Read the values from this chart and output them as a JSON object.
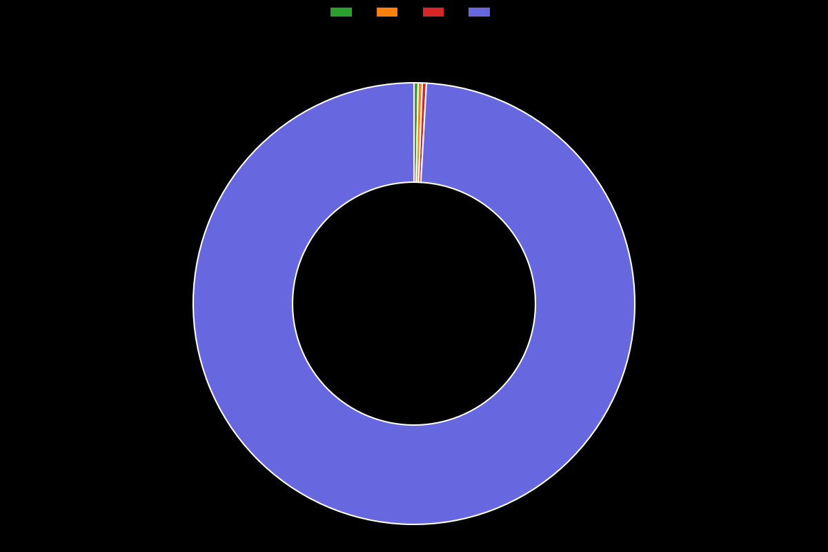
{
  "values": [
    0.3,
    0.3,
    0.3,
    99.1
  ],
  "colors": [
    "#2ca02c",
    "#ff7f0e",
    "#d62728",
    "#6767e0"
  ],
  "legend_labels": [
    "",
    "",
    "",
    ""
  ],
  "background_color": "#000000",
  "wedge_edge_color": "#ffffff",
  "wedge_edge_width": 1.5,
  "donut_width": 0.45,
  "figsize": [
    12.0,
    8.0
  ],
  "dpi": 100
}
